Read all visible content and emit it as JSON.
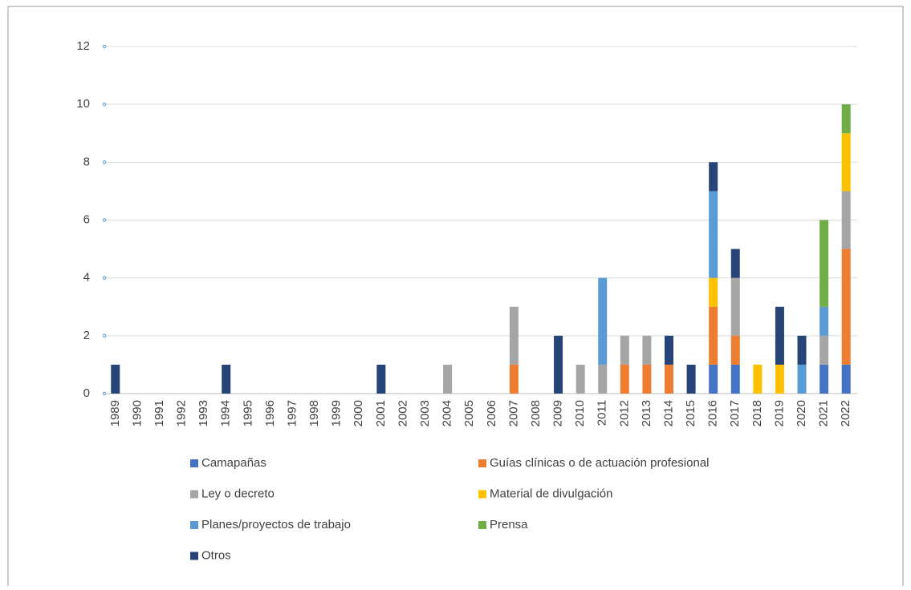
{
  "chart_data": {
    "type": "stacked-bar",
    "categories": [
      "1989",
      "1990",
      "1991",
      "1992",
      "1993",
      "1994",
      "1995",
      "1996",
      "1997",
      "1998",
      "1999",
      "2000",
      "2001",
      "2002",
      "2003",
      "2004",
      "2005",
      "2006",
      "2007",
      "2008",
      "2009",
      "2010",
      "2011",
      "2012",
      "2013",
      "2014",
      "2015",
      "2016",
      "2017",
      "2018",
      "2019",
      "2020",
      "2021",
      "2022"
    ],
    "series": [
      {
        "name": "Camapañas",
        "color": "#4472c4",
        "values": [
          0,
          0,
          0,
          0,
          0,
          0,
          0,
          0,
          0,
          0,
          0,
          0,
          0,
          0,
          0,
          0,
          0,
          0,
          0,
          0,
          0,
          0,
          0,
          0,
          0,
          0,
          0,
          1,
          1,
          0,
          0,
          0,
          1,
          1
        ]
      },
      {
        "name": "Guías clínicas o de actuación profesional",
        "color": "#ed7d31",
        "values": [
          0,
          0,
          0,
          0,
          0,
          0,
          0,
          0,
          0,
          0,
          0,
          0,
          0,
          0,
          0,
          0,
          0,
          0,
          1,
          0,
          0,
          0,
          0,
          1,
          1,
          1,
          0,
          2,
          1,
          0,
          0,
          0,
          0,
          4
        ]
      },
      {
        "name": "Ley o decreto",
        "color": "#a5a5a5",
        "values": [
          0,
          0,
          0,
          0,
          0,
          0,
          0,
          0,
          0,
          0,
          0,
          0,
          0,
          0,
          0,
          1,
          0,
          0,
          2,
          0,
          0,
          1,
          1,
          1,
          1,
          0,
          0,
          0,
          2,
          0,
          0,
          0,
          1,
          2
        ]
      },
      {
        "name": "Material de divulgación",
        "color": "#ffc000",
        "values": [
          0,
          0,
          0,
          0,
          0,
          0,
          0,
          0,
          0,
          0,
          0,
          0,
          0,
          0,
          0,
          0,
          0,
          0,
          0,
          0,
          0,
          0,
          0,
          0,
          0,
          0,
          0,
          1,
          0,
          1,
          1,
          0,
          0,
          2
        ]
      },
      {
        "name": "Planes/proyectos de trabajo",
        "color": "#5b9bd5",
        "values": [
          0,
          0,
          0,
          0,
          0,
          0,
          0,
          0,
          0,
          0,
          0,
          0,
          0,
          0,
          0,
          0,
          0,
          0,
          0,
          0,
          0,
          0,
          3,
          0,
          0,
          0,
          0,
          3,
          0,
          0,
          0,
          1,
          1,
          0
        ]
      },
      {
        "name": "Prensa",
        "color": "#70ad47",
        "values": [
          0,
          0,
          0,
          0,
          0,
          0,
          0,
          0,
          0,
          0,
          0,
          0,
          0,
          0,
          0,
          0,
          0,
          0,
          0,
          0,
          0,
          0,
          0,
          0,
          0,
          0,
          0,
          0,
          0,
          0,
          0,
          0,
          3,
          1
        ]
      },
      {
        "name": "Otros",
        "color": "#264478",
        "values": [
          1,
          0,
          0,
          0,
          0,
          1,
          0,
          0,
          0,
          0,
          0,
          0,
          1,
          0,
          0,
          0,
          0,
          0,
          0,
          0,
          2,
          0,
          0,
          0,
          0,
          1,
          1,
          1,
          1,
          0,
          2,
          1,
          0,
          0
        ]
      }
    ],
    "ylim": [
      0,
      12
    ],
    "yticks": [
      0,
      2,
      4,
      6,
      8,
      10,
      12
    ],
    "grid": true
  }
}
